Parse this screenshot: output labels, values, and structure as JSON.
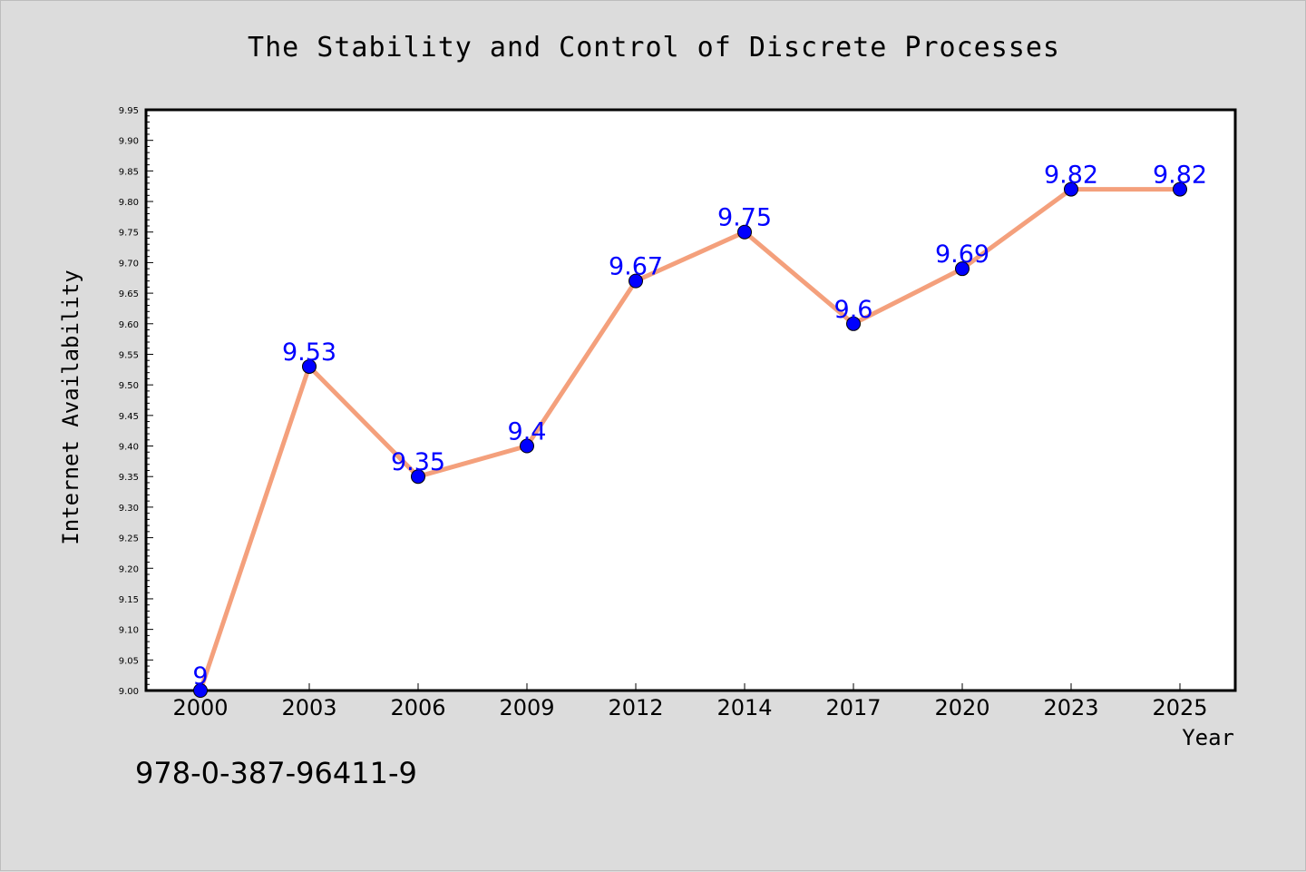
{
  "chart_data": {
    "type": "line",
    "title": "The Stability and Control of Discrete Processes",
    "xlabel": "Year",
    "ylabel": "Internet Availability",
    "categories": [
      "2000",
      "2003",
      "2006",
      "2009",
      "2012",
      "2014",
      "2017",
      "2020",
      "2023",
      "2025"
    ],
    "series": [
      {
        "values": [
          9.0,
          9.53,
          9.35,
          9.4,
          9.67,
          9.75,
          9.6,
          9.69,
          9.82,
          9.82
        ],
        "labels": [
          "9",
          "9.53",
          "9.35",
          "9.4",
          "9.67",
          "9.75",
          "9.6",
          "9.69",
          "9.82",
          "9.82"
        ],
        "line_color": "#f4a07c",
        "marker_color": "#0000ff"
      }
    ],
    "ylim": [
      9.0,
      9.95
    ],
    "yticks": [
      "9.00",
      "9.05",
      "9.10",
      "9.15",
      "9.20",
      "9.25",
      "9.30",
      "9.35",
      "9.40",
      "9.45",
      "9.50",
      "9.55",
      "9.60",
      "9.65",
      "9.70",
      "9.75",
      "9.80",
      "9.85",
      "9.90",
      "9.95"
    ],
    "grid": false,
    "legend": "none"
  },
  "footer": {
    "code": "978-0-387-96411-9"
  },
  "colors": {
    "background": "#dcdcdc",
    "plot_area": "#ffffff"
  }
}
